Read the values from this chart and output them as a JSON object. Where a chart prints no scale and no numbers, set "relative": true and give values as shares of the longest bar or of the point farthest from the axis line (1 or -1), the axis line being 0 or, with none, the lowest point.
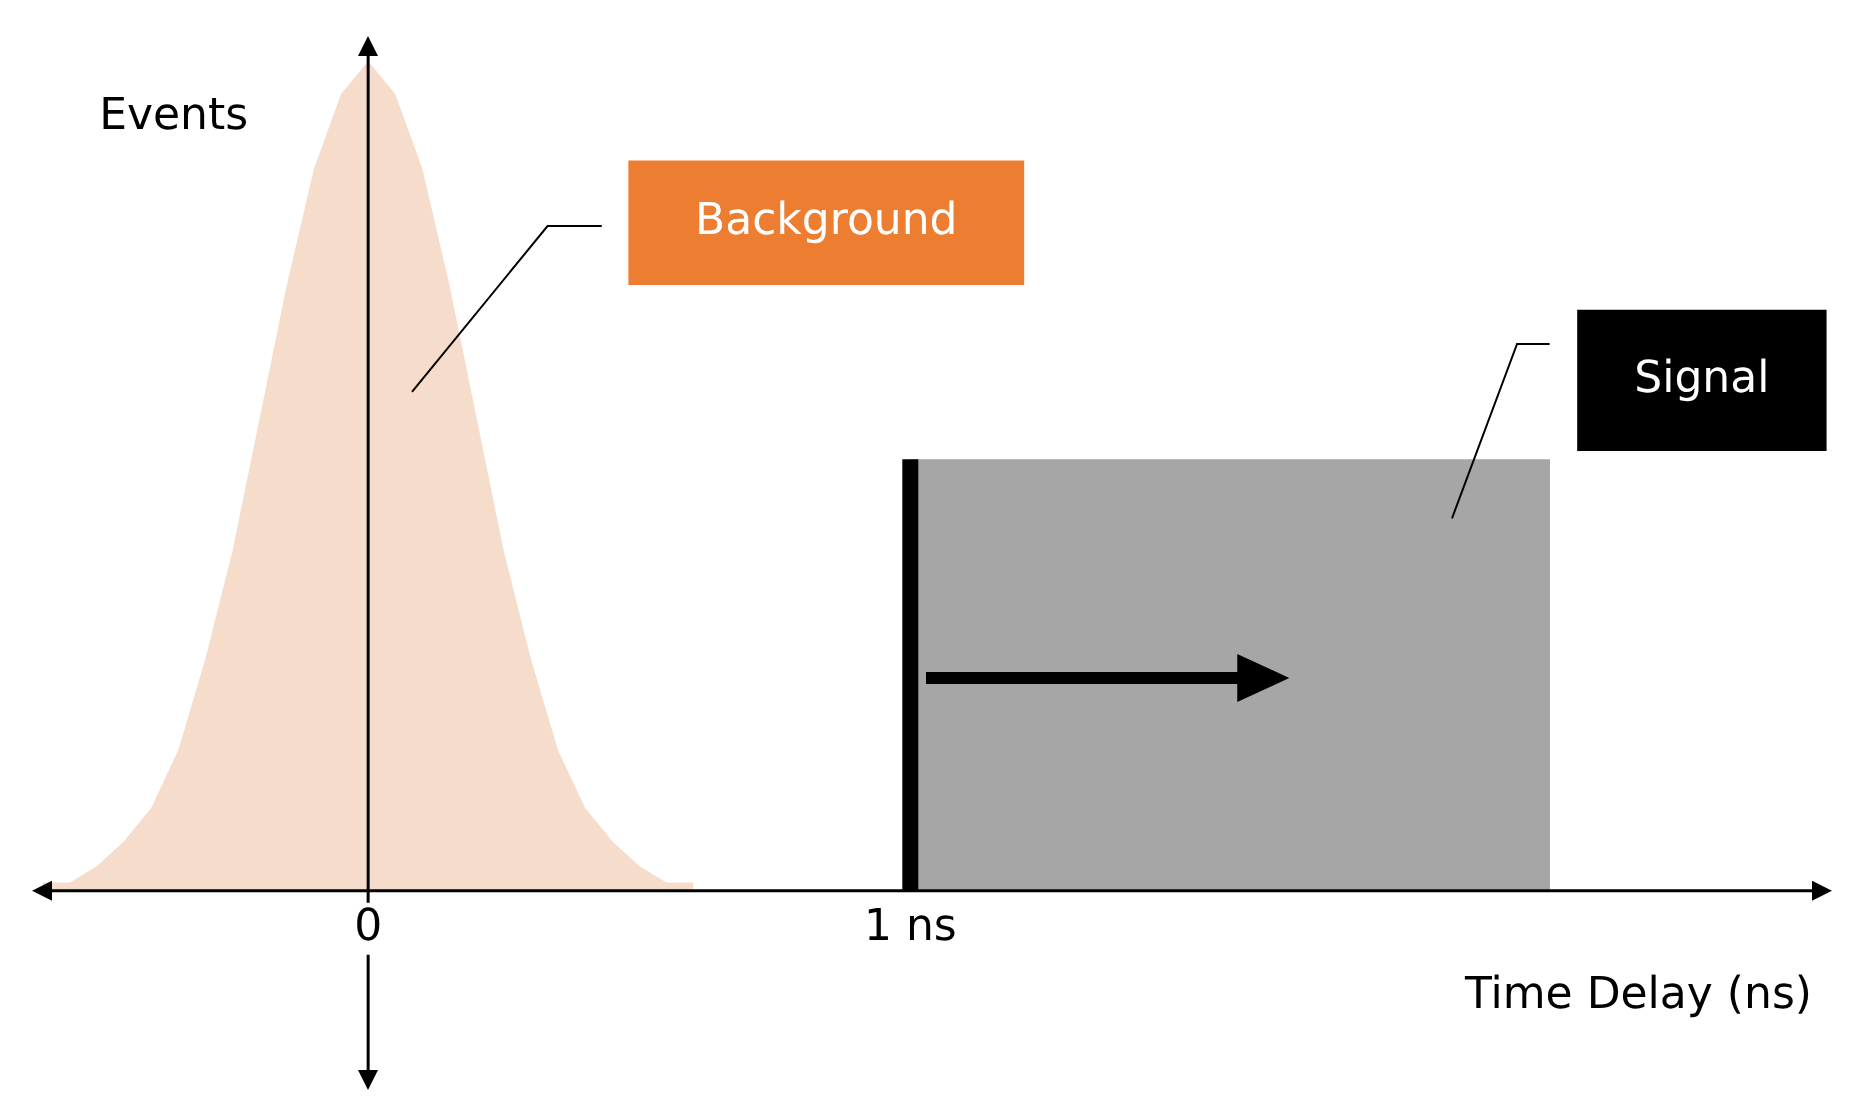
{
  "chart_data": {
    "type": "area",
    "relative": true,
    "xlabel": "Time Delay (ns)",
    "ylabel": "Events",
    "xlim": [
      -0.62,
      2.7
    ],
    "xticks": [
      {
        "value": 0,
        "label": "0"
      },
      {
        "value": 1,
        "label": "1 ns"
      }
    ],
    "series": [
      {
        "name": "Background",
        "color": "#f6dccb",
        "x": [
          -0.6,
          -0.55,
          -0.5,
          -0.45,
          -0.4,
          -0.35,
          -0.3,
          -0.25,
          -0.2,
          -0.15,
          -0.1,
          -0.05,
          0,
          0.05,
          0.1,
          0.15,
          0.2,
          0.25,
          0.3,
          0.35,
          0.4,
          0.45,
          0.5,
          0.55,
          0.6
        ],
        "values": [
          0.01,
          0.01,
          0.03,
          0.06,
          0.1,
          0.17,
          0.28,
          0.41,
          0.57,
          0.73,
          0.87,
          0.96,
          1,
          0.96,
          0.87,
          0.73,
          0.57,
          0.41,
          0.28,
          0.17,
          0.1,
          0.06,
          0.03,
          0.01,
          0.01
        ]
      },
      {
        "name": "Signal",
        "color": "#a6a6a6",
        "x": [
          1,
          1,
          2.18,
          2.18
        ],
        "values": [
          0,
          0.52,
          0.52,
          0
        ]
      }
    ],
    "ref_lines": [
      {
        "axis": "x",
        "value": 1,
        "color": "#000000"
      }
    ],
    "legend": false
  }
}
